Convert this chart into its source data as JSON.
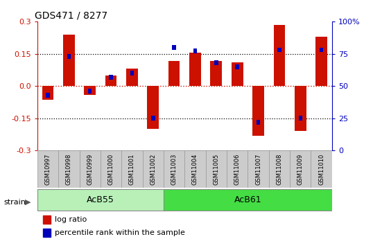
{
  "title": "GDS471 / 8277",
  "samples": [
    "GSM10997",
    "GSM10998",
    "GSM10999",
    "GSM11000",
    "GSM11001",
    "GSM11002",
    "GSM11003",
    "GSM11004",
    "GSM11005",
    "GSM11006",
    "GSM11007",
    "GSM11008",
    "GSM11009",
    "GSM11010"
  ],
  "log_ratio": [
    -0.065,
    0.24,
    -0.04,
    0.05,
    0.08,
    -0.2,
    0.115,
    0.155,
    0.115,
    0.11,
    -0.23,
    0.285,
    -0.21,
    0.23
  ],
  "percentile_rank": [
    43,
    73,
    46,
    57,
    60,
    25,
    80,
    77,
    68,
    65,
    22,
    78,
    25,
    78
  ],
  "groups": [
    {
      "label": "AcB55",
      "start": 0,
      "end": 5,
      "color": "#b8f0b8"
    },
    {
      "label": "AcB61",
      "start": 6,
      "end": 13,
      "color": "#44dd44"
    }
  ],
  "ylim": [
    -0.3,
    0.3
  ],
  "yticks_left": [
    -0.3,
    -0.15,
    0.0,
    0.15,
    0.3
  ],
  "yticks_right": [
    0,
    25,
    50,
    75,
    100
  ],
  "bar_width": 0.55,
  "blue_bar_width": 0.18,
  "percentile_ref": 50,
  "left_color": "#cc1100",
  "right_color": "#0000bb",
  "dotted_line_color": "#000000",
  "background_color": "#ffffff",
  "group_border_color": "#888888",
  "sample_box_color": "#cccccc",
  "sample_box_edge": "#999999",
  "left_ytick_label_format": [
    "−0.3",
    "−0.15",
    "0",
    "0.15",
    "0.3"
  ],
  "right_ytick_labels": [
    "0",
    "25",
    "50",
    "75",
    "100%"
  ]
}
